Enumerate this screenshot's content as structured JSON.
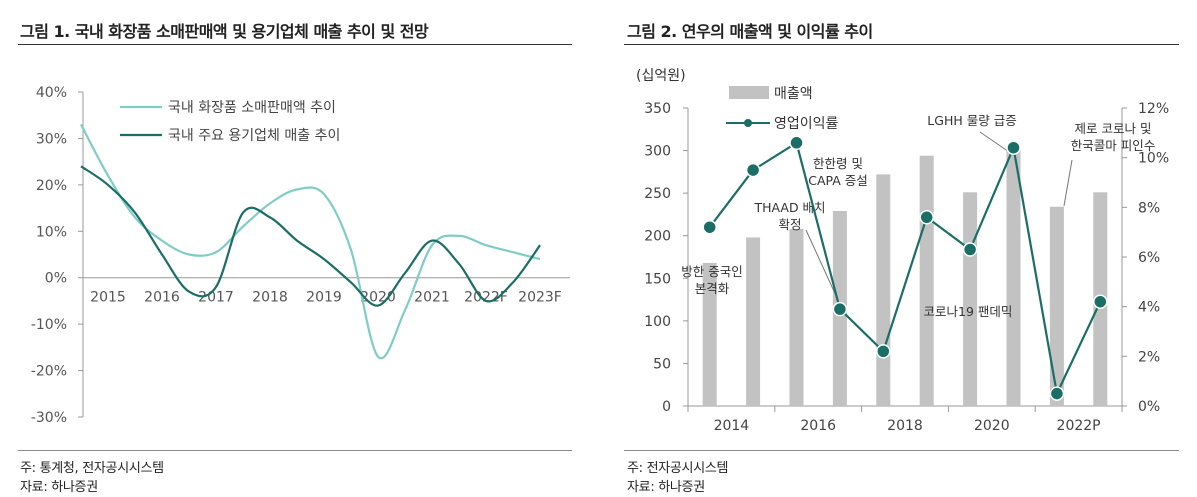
{
  "left": {
    "title": "그림 1. 국내 화장품 소매판매액 및 용기업체 매출 추이 및 전망",
    "note": "주: 통계청, 전자공시시스템",
    "source": "자료: 하나증권"
  },
  "right": {
    "title": "그림 2. 연우의 매출액 및 이익률 추이",
    "note": "주: 전자공시시스템",
    "source": "자료: 하나증권"
  },
  "colors": {
    "light_teal": "#7fcdc4",
    "dark_teal": "#1b6e66",
    "bar_gray": "#c2c2c2",
    "axis": "#999999"
  },
  "chart_data": [
    {
      "type": "line",
      "title": "국내 화장품 소매판매액 및 용기업체 매출 추이 및 전망",
      "categories": [
        "2015",
        "2016",
        "2017",
        "2018",
        "2019",
        "2020",
        "2021",
        "2022F",
        "2023F"
      ],
      "y_ticks": [
        "40%",
        "30%",
        "20%",
        "10%",
        "0%",
        "-10%",
        "-20%",
        "-30%"
      ],
      "ylim": [
        -30,
        40
      ],
      "series": [
        {
          "name": "국내 화장품 소매판매액 추이",
          "x": [
            2014.5,
            2015.0,
            2015.5,
            2016.0,
            2016.5,
            2017.0,
            2017.5,
            2018.0,
            2018.5,
            2019.0,
            2019.5,
            2020.0,
            2020.5,
            2021.0,
            2021.5,
            2022.0,
            2022.5,
            2023.0
          ],
          "values": [
            33,
            22,
            13,
            8,
            5,
            5.5,
            11,
            16,
            19,
            18,
            6,
            -17,
            -7,
            7,
            9,
            7,
            5.5,
            4
          ]
        },
        {
          "name": "국내 주요 용기업체 매출 추이",
          "x": [
            2014.5,
            2015.0,
            2015.5,
            2016.0,
            2016.5,
            2017.0,
            2017.5,
            2018.0,
            2018.5,
            2019.0,
            2019.5,
            2020.0,
            2020.5,
            2021.0,
            2021.5,
            2022.0,
            2022.5,
            2023.0
          ],
          "values": [
            24,
            20,
            14,
            5,
            -3,
            -2,
            14,
            13,
            8,
            4,
            -1,
            -6,
            1,
            8,
            3,
            -5,
            -1,
            7
          ]
        }
      ]
    },
    {
      "type": "bar",
      "title": "연우의 매출액 및 이익률 추이",
      "unit_label": "(십억원)",
      "categories": [
        "2014",
        "2015",
        "2016",
        "2017",
        "2018",
        "2019",
        "2020",
        "2021",
        "2022P",
        "2023"
      ],
      "x_tick_labels": [
        "2014",
        "2016",
        "2018",
        "2020",
        "2022P"
      ],
      "y_left_ticks": [
        "350",
        "300",
        "250",
        "200",
        "150",
        "100",
        "50",
        "0"
      ],
      "y_right_ticks": [
        "12%",
        "10%",
        "8%",
        "6%",
        "4%",
        "2%",
        "0%"
      ],
      "ylim_left": [
        0,
        350
      ],
      "ylim_right": [
        0,
        12
      ],
      "series": [
        {
          "name": "매출액",
          "kind": "bar",
          "axis": "left",
          "values": [
            168,
            198,
            208,
            229,
            272,
            294,
            251,
            300,
            234,
            251
          ]
        },
        {
          "name": "영업이익률",
          "kind": "line",
          "axis": "right",
          "values": [
            7.2,
            9.5,
            10.6,
            3.9,
            2.2,
            7.6,
            6.3,
            10.4,
            0.5,
            4.2
          ]
        }
      ],
      "annotations": [
        {
          "lines": [
            "방한 중국인",
            "본격화"
          ]
        },
        {
          "lines": [
            "THAAD 배치",
            "확정"
          ]
        },
        {
          "lines": [
            "한한령 및",
            "CAPA 증설"
          ]
        },
        {
          "lines": [
            "코로나19 팬데믹"
          ]
        },
        {
          "lines": [
            "LGHH 물량 급증"
          ]
        },
        {
          "lines": [
            "제로 코로나 및",
            "한국콜마 피인수"
          ]
        }
      ]
    }
  ]
}
